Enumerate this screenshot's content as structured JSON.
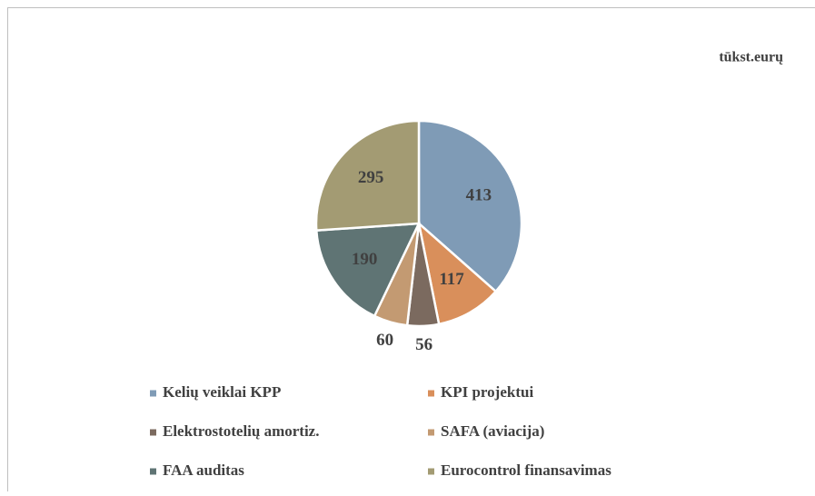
{
  "chart_data": {
    "type": "pie",
    "subtitle": "tūkst.eurų",
    "categories": [
      "Kelių veiklai KPP",
      "KPI projektui",
      "Elektrostotelių amortiz.",
      "SAFA (aviacija)",
      "FAA auditas",
      "Eurocontrol finansavimas"
    ],
    "values": [
      413,
      117,
      56,
      60,
      190,
      295
    ],
    "colors": [
      "#7f9bb6",
      "#d98f5b",
      "#7b6a5f",
      "#c39a72",
      "#5f7474",
      "#a39b73"
    ],
    "legend": "bottom"
  }
}
